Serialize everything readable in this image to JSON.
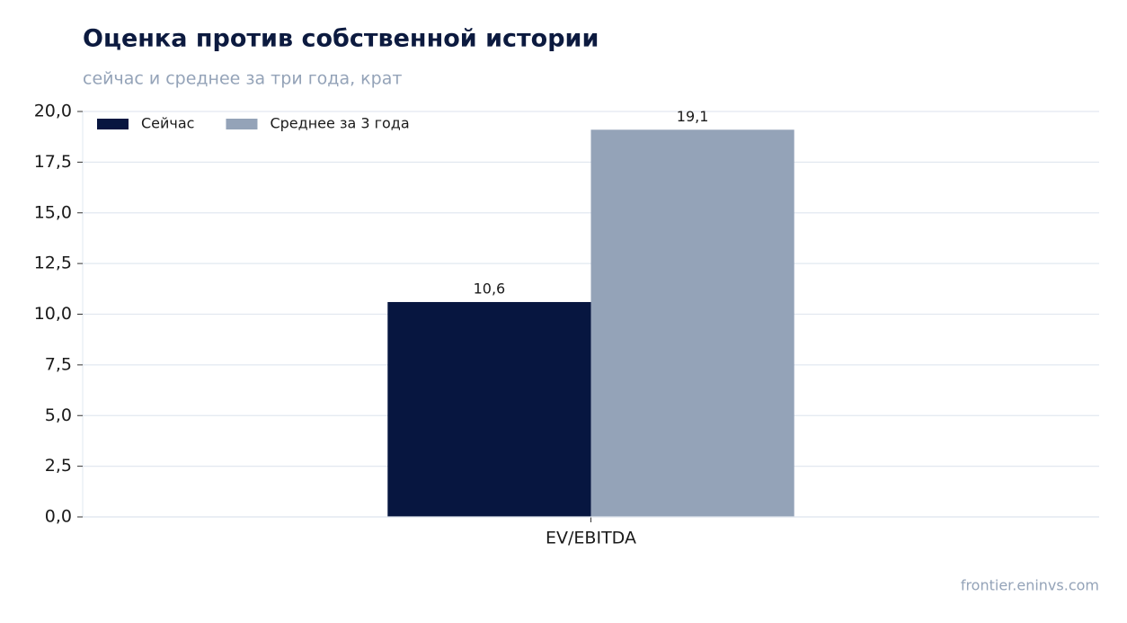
{
  "chart_data": {
    "type": "bar",
    "title": "Оценка против собственной истории",
    "subtitle": "сейчас и среднее за три года, крат",
    "source": "frontier.eninvs.com",
    "categories": [
      "EV/EBITDA"
    ],
    "series": [
      {
        "name": "Сейчас",
        "color": "#071640",
        "values": [
          10.6
        ],
        "value_labels": [
          "10,6"
        ]
      },
      {
        "name": "Среднее за 3 года",
        "color": "#94a3b8",
        "values": [
          19.1
        ],
        "value_labels": [
          "19,1"
        ]
      }
    ],
    "ylim": [
      0,
      20
    ],
    "yticks": [
      {
        "value": 0,
        "label": "0,0"
      },
      {
        "value": 2.5,
        "label": "2,5"
      },
      {
        "value": 5,
        "label": "5,0"
      },
      {
        "value": 7.5,
        "label": "7,5"
      },
      {
        "value": 10,
        "label": "10,0"
      },
      {
        "value": 12.5,
        "label": "12,5"
      },
      {
        "value": 15,
        "label": "15,0"
      },
      {
        "value": 17.5,
        "label": "17,5"
      },
      {
        "value": 20,
        "label": "20,0"
      }
    ],
    "grid": true,
    "legend": "upper-left"
  }
}
